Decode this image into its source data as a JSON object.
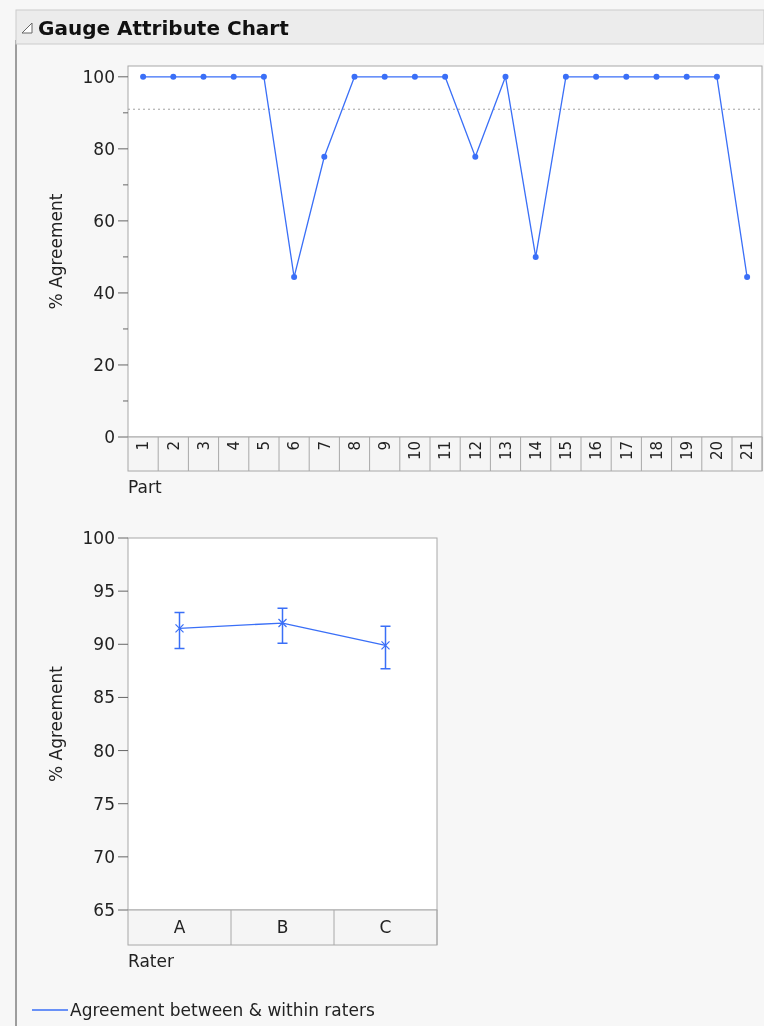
{
  "chart_data": [
    {
      "type": "line",
      "title": "Gauge Attribute Chart",
      "xlabel": "Part",
      "ylabel": "% Agreement",
      "categories": [
        "1",
        "2",
        "3",
        "4",
        "5",
        "6",
        "7",
        "8",
        "9",
        "10",
        "11",
        "12",
        "13",
        "14",
        "15",
        "16",
        "17",
        "18",
        "19",
        "20",
        "21"
      ],
      "series": [
        {
          "color": "#3a6ff7",
          "values": [
            100,
            100,
            100,
            100,
            100,
            44.4,
            77.8,
            100,
            100,
            100,
            100,
            77.8,
            100,
            50,
            100,
            100,
            100,
            100,
            100,
            100,
            44.4
          ]
        }
      ],
      "ylim": [
        0,
        103
      ],
      "yticks": [
        0,
        {
          "value": 10,
          "label": null
        },
        20,
        {
          "value": 30,
          "label": null
        },
        40,
        {
          "value": 50,
          "label": null
        },
        60,
        {
          "value": 70,
          "label": null
        },
        80,
        {
          "value": 90,
          "label": null
        },
        100
      ],
      "ref_lines": [
        {
          "axis": "y",
          "value": 91,
          "color": "#a0a0a0",
          "line_style": "dotted"
        }
      ],
      "marker": "circle",
      "grid": false
    },
    {
      "type": "line",
      "xlabel": "Rater",
      "ylabel": "% Agreement",
      "categories": [
        "A",
        "B",
        "C"
      ],
      "series": [
        {
          "name": "Agreement between & within raters",
          "color": "#3a6ff7",
          "values": [
            91.5,
            92,
            89.9
          ],
          "errors": [
            [
              89.6,
              93
            ],
            [
              90.1,
              93.4
            ],
            [
              87.7,
              91.7
            ]
          ]
        }
      ],
      "ylim": [
        65,
        100
      ],
      "yticks": [
        65,
        70,
        75,
        80,
        85,
        90,
        95,
        100
      ],
      "marker": "cross",
      "grid": false,
      "legend": "bottom"
    }
  ]
}
